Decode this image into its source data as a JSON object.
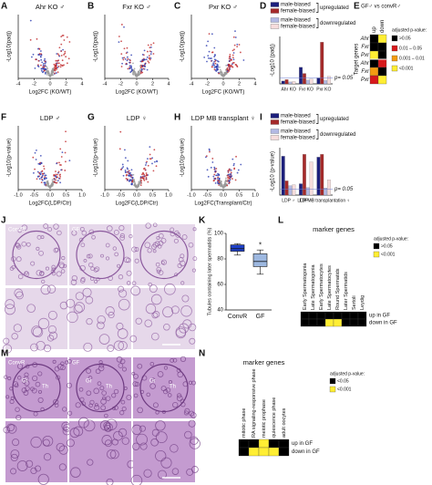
{
  "volcano": [
    {
      "letter": "A",
      "title": "Ahr KO ♂",
      "xlabel": "Log2FC (KO/WT)",
      "ylabel": "-Log10(padj)",
      "xlim": [
        -4,
        4
      ],
      "xticks": [
        -4,
        -2,
        0,
        2,
        4
      ]
    },
    {
      "letter": "B",
      "title": "Fxr KO ♂",
      "xlabel": "Log2FC (KO/WT)",
      "ylabel": "-Log10(padj)",
      "xlim": [
        -4,
        4
      ],
      "xticks": [
        -4,
        -2,
        0,
        2,
        4
      ]
    },
    {
      "letter": "C",
      "title": "Pxr KO ♂",
      "xlabel": "Log2FC (KO/WT)",
      "ylabel": "-Log10(padj)",
      "xlim": [
        -4,
        4
      ],
      "xticks": [
        -4,
        -2,
        0,
        2,
        4
      ]
    },
    {
      "letter": "F",
      "title": "LDP ♂",
      "xlabel": "Log2FC(LDP/Ctr)",
      "ylabel": "-Log10(p-value)",
      "xlim": [
        -1,
        1
      ],
      "xticks": [
        {
          "value": -1,
          "label": "-1.0"
        },
        {
          "value": -0.5,
          "label": "-0.5"
        },
        {
          "value": 0,
          "label": "0.0"
        },
        {
          "value": 0.5,
          "label": "0.5"
        },
        {
          "value": 1,
          "label": "1.0"
        }
      ]
    },
    {
      "letter": "G",
      "title": "LDP ♀",
      "xlabel": "Log2FC(LDP/Ctr)",
      "ylabel": "-Log10(p-value)",
      "xlim": [
        -1,
        1
      ],
      "xticks": [
        {
          "value": -1,
          "label": "-1.0"
        },
        {
          "value": -0.5,
          "label": "-0.5"
        },
        {
          "value": 0,
          "label": "0.0"
        },
        {
          "value": 0.5,
          "label": "0.5"
        },
        {
          "value": 1,
          "label": "1.0"
        }
      ]
    },
    {
      "letter": "H",
      "title": "LDP MB transplant ♀",
      "xlabel": "Log2FC(Transplant/Ctr)",
      "ylabel": "-Log10(p-value)",
      "xlim": [
        -1,
        1
      ],
      "xticks": [
        {
          "value": -1,
          "label": "-1.0"
        },
        {
          "value": -0.5,
          "label": "-0.5"
        },
        {
          "value": 0,
          "label": "0.0"
        },
        {
          "value": 0.5,
          "label": "0.5"
        },
        {
          "value": 1,
          "label": "1.0"
        }
      ]
    }
  ],
  "bars": [
    {
      "letter": "D",
      "ylabel": "-Log10 (padj)",
      "threshold": 1.3,
      "threshold_label": "p= 0.05",
      "ylim": [
        0,
        10
      ],
      "legend_groups": [
        "upregulated",
        "downregulated"
      ],
      "categories": [
        "Ahr KO",
        "Fxr KO",
        "Pxr KO"
      ],
      "series": [
        {
          "name": "male-biased",
          "color": "#1c1f7c",
          "values": [
            0.6,
            3.5,
            1.2
          ]
        },
        {
          "name": "female-biased",
          "color": "#a52a2a",
          "values": [
            0.9,
            2.2,
            8.8
          ]
        },
        {
          "name": "male-biased",
          "color": "#b3b9e3",
          "values": [
            0.4,
            0.8,
            0.7
          ]
        },
        {
          "name": "female-biased",
          "color": "#f6dcdc",
          "values": [
            0.5,
            1.0,
            1.6
          ]
        }
      ]
    },
    {
      "letter": "I",
      "ylabel": "-Log10 (p-value)",
      "threshold": 1.3,
      "threshold_label": "p= 0.05",
      "ylim": [
        0,
        10
      ],
      "legend_groups": [
        "upregulated",
        "downregulated"
      ],
      "categories": [
        "LDP ♂",
        "LDP ♀",
        "LDP MB transplantation ♀"
      ],
      "series": [
        {
          "name": "male-biased",
          "color": "#1c1f7c",
          "values": [
            8.2,
            2.4,
            8.0
          ]
        },
        {
          "name": "female-biased",
          "color": "#a52a2a",
          "values": [
            3.0,
            8.6,
            8.6
          ]
        },
        {
          "name": "male-biased",
          "color": "#b3b9e3",
          "values": [
            2.0,
            1.6,
            1.5
          ]
        },
        {
          "name": "female-biased",
          "color": "#f6dcdc",
          "values": [
            2.2,
            7.0,
            3.2
          ]
        }
      ]
    }
  ],
  "enrichment": {
    "letter": "E",
    "title": "GF♂ vs convR♂",
    "columns": [
      "up",
      "down"
    ],
    "row_group": "Target genes",
    "rows": [
      "Ahr",
      "Fxr",
      "Pxr",
      "Ahr",
      "Fxr",
      "Pxr"
    ],
    "legend_title": "adjusted p-value:",
    "legend": [
      {
        "label": ">0.05",
        "color": "#000000"
      },
      {
        "label": "0.01 – 0.05",
        "color": "#d7191c"
      },
      {
        "label": "0.001 – 0.01",
        "color": "#f39c12"
      },
      {
        "label": "<0.001",
        "color": "#ffee33"
      }
    ],
    "cells": [
      [
        ">0.05",
        "<0.001"
      ],
      [
        ">0.05",
        ">0.05"
      ],
      [
        "<0.001",
        ">0.05"
      ],
      [
        ">0.05",
        "0.01 – 0.05"
      ],
      [
        "0.001 – 0.01",
        ">0.05"
      ],
      [
        "0.01 – 0.05",
        "<0.001"
      ]
    ]
  },
  "histology_j": {
    "letter": "J",
    "labels": [
      "ConvR",
      "GF"
    ]
  },
  "boxplot": {
    "letter": "K",
    "ylabel": "Tubules containing later spermatids (%)",
    "categories": [
      "ConvR",
      "GF"
    ],
    "ylim": [
      40,
      100
    ],
    "yticks": [
      40,
      60,
      80,
      100
    ],
    "annotation": "*",
    "boxes": [
      {
        "min": 83,
        "q1": 86,
        "median": 88,
        "q3": 91,
        "max": 92,
        "color": "#1e40c8"
      },
      {
        "min": 68,
        "q1": 74,
        "median": 78,
        "q3": 84,
        "max": 87,
        "color": "#9db8e0"
      }
    ]
  },
  "marker_l": {
    "letter": "L",
    "title": "marker genes",
    "legend_title": "adjusted p-value:",
    "legend": [
      {
        "label": ">0.05",
        "color": "#000000"
      },
      {
        "label": "<0.001",
        "color": "#ffee33"
      }
    ],
    "columns": [
      "Early Spermatogonia",
      "Late Spermatogonia",
      "Early Spermatocytes",
      "Late Spermatocytes",
      "Round Spermatids",
      "Later Spermatids",
      "Sertoli",
      "Leydig"
    ],
    "rows": [
      "up in GF",
      "down in GF"
    ],
    "cells": [
      [
        ">0.05",
        ">0.05",
        ">0.05",
        ">0.05",
        ">0.05",
        ">0.05",
        ">0.05",
        ">0.05"
      ],
      [
        ">0.05",
        ">0.05",
        ">0.05",
        "<0.001",
        "<0.001",
        ">0.05",
        ">0.05",
        ">0.05"
      ]
    ]
  },
  "histology_m": {
    "letter": "M",
    "labels": [
      "ConvR",
      "GF"
    ],
    "tags": [
      "Gr",
      "Th"
    ]
  },
  "marker_n": {
    "letter": "N",
    "title": "marker genes",
    "legend_title": "adjusted p-value:",
    "legend": [
      {
        "label": "<0.05",
        "color": "#000000"
      },
      {
        "label": "<0.001",
        "color": "#ffee33"
      }
    ],
    "columns": [
      "mitotic phase",
      "RA signaling-responsive phase",
      "meiotic prophase",
      "quiescence phase",
      "adult oocytes"
    ],
    "rows": [
      "up in GF",
      "down in GF"
    ],
    "cells": [
      [
        ">0.05",
        ">0.05",
        "<0.001",
        ">0.05",
        ">0.05"
      ],
      [
        ">0.05",
        "<0.001",
        "<0.001",
        "<0.001",
        ">0.05"
      ]
    ]
  }
}
